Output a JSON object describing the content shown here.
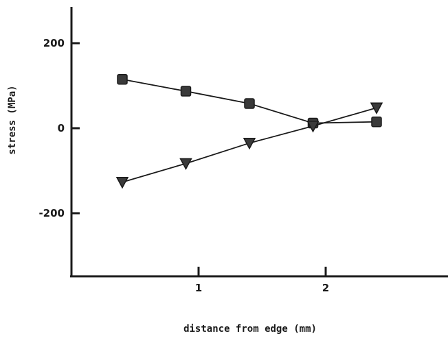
{
  "chart_data": {
    "type": "line",
    "title": "",
    "xlabel": "distance from edge (mm)",
    "ylabel": "stress (MPa)",
    "xlim": [
      0,
      3.4
    ],
    "ylim": [
      -350,
      285
    ],
    "x_ticks": [
      1,
      2
    ],
    "x_tick_labels": [
      "1",
      "2"
    ],
    "y_ticks": [
      200,
      0,
      -200
    ],
    "y_tick_labels": [
      "200",
      "0",
      "-200"
    ],
    "grid": false,
    "legend": "none",
    "series": [
      {
        "marker": "square",
        "x": [
          0.4,
          0.9,
          1.4,
          1.9,
          2.4
        ],
        "y": [
          115,
          87,
          58,
          12,
          15
        ]
      },
      {
        "marker": "triangle-down",
        "x": [
          0.4,
          0.9,
          1.4,
          1.9,
          2.4
        ],
        "y": [
          -127,
          -83,
          -35,
          5,
          48
        ]
      }
    ]
  },
  "colors": {
    "ink": "#1a1a1a",
    "background": "#ffffff"
  }
}
